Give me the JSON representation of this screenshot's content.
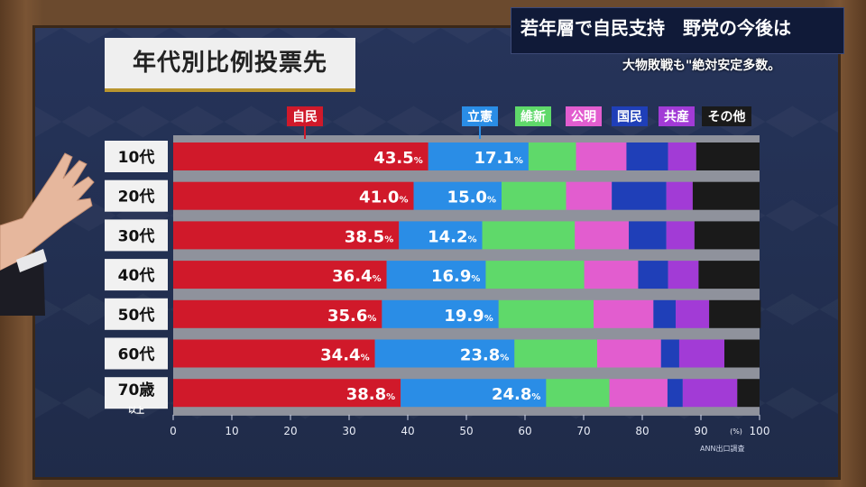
{
  "title": "年代別比例投票先",
  "headline": "若年層で自民支持　野党の今後は",
  "subline": "大物敗戦も\"絶対安定多数。",
  "credit": "ANN出口調査",
  "colors": {
    "自民": "#d0192a",
    "立憲": "#2a8de6",
    "維新": "#5fd96a",
    "公明": "#e25dcf",
    "国民": "#1f3fb8",
    "共産": "#a23bd6",
    "その他": "#1a1a1a"
  },
  "chart_data": {
    "type": "bar",
    "orientation": "horizontal",
    "stacked": true,
    "categories": [
      "10代",
      "20代",
      "30代",
      "40代",
      "50代",
      "60代",
      "70歳"
    ],
    "category_sublabels": [
      "",
      "",
      "",
      "",
      "",
      "",
      "以上"
    ],
    "xlim": [
      0,
      100
    ],
    "xticks": [
      0,
      10,
      20,
      30,
      40,
      50,
      60,
      70,
      80,
      90,
      100
    ],
    "xunit": "(%)",
    "series": [
      {
        "name": "自民",
        "values": [
          43.5,
          41.0,
          38.5,
          36.4,
          35.6,
          34.4,
          38.8
        ],
        "labeled": true
      },
      {
        "name": "立憲",
        "values": [
          17.1,
          15.0,
          14.2,
          16.9,
          19.9,
          23.8,
          24.8
        ],
        "labeled": true
      },
      {
        "name": "維新",
        "values": [
          8.1,
          11.0,
          15.8,
          16.8,
          16.2,
          14.1,
          10.8
        ],
        "labeled": false
      },
      {
        "name": "公明",
        "values": [
          8.6,
          7.8,
          9.2,
          9.2,
          10.2,
          10.9,
          9.9
        ],
        "labeled": false
      },
      {
        "name": "国民",
        "values": [
          7.1,
          9.3,
          6.4,
          5.1,
          3.8,
          3.1,
          2.6
        ],
        "labeled": false
      },
      {
        "name": "共産",
        "values": [
          4.8,
          4.5,
          4.8,
          5.2,
          5.7,
          7.7,
          9.3
        ],
        "labeled": false
      },
      {
        "name": "その他",
        "values": [
          10.8,
          11.4,
          11.1,
          10.4,
          8.8,
          6.0,
          3.8
        ],
        "labeled": false
      }
    ]
  }
}
